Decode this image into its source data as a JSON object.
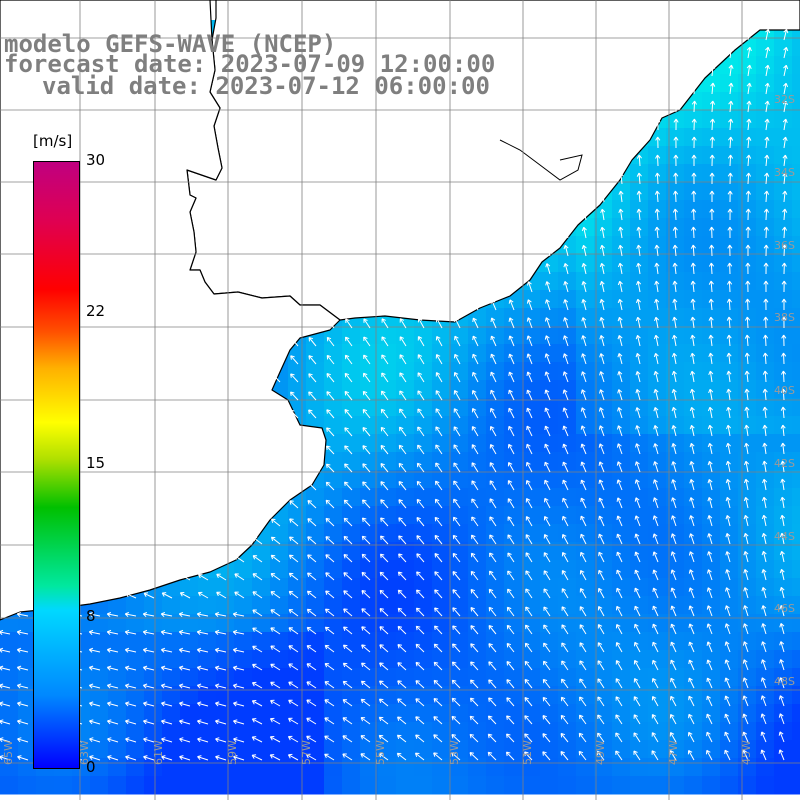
{
  "header": {
    "title": "modelo GEFS-WAVE (NCEP)",
    "forecast_date": "forecast date: 2023-07-09 12:00:00",
    "valid_date": "valid date: 2023-07-12 06:00:00"
  },
  "colorbar": {
    "unit": "[m/s]",
    "ticks": [
      "30",
      "22",
      "15",
      "8",
      "0"
    ],
    "min": 0,
    "max": 30
  },
  "grid": {
    "lat_labels": [
      "32S",
      "34S",
      "36S",
      "38S",
      "40S",
      "42S",
      "44S",
      "46S",
      "48S"
    ],
    "lon_labels": [
      "65W",
      "63W",
      "61W",
      "59W",
      "57W",
      "55W",
      "53W",
      "51W",
      "49W",
      "47W",
      "45W"
    ]
  },
  "colors": {
    "land": "#ffffff",
    "coast": "#000000",
    "grid": "#808080",
    "title": "#7f7f7f",
    "arrows": "#ffffff"
  }
}
